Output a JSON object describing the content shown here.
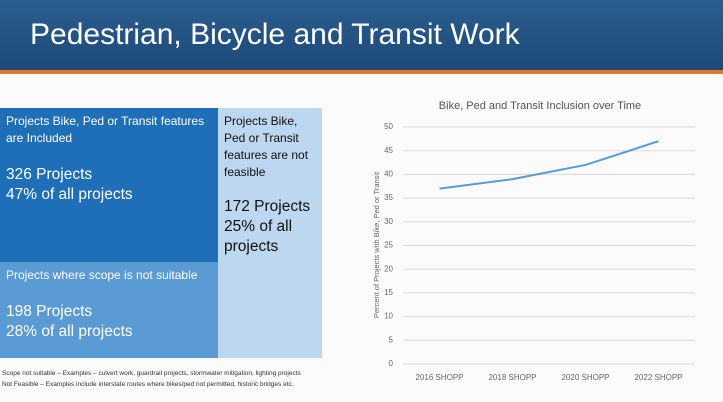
{
  "title": "Pedestrian, Bicycle and Transit Work",
  "panels": [
    {
      "label": "Projects Bike, Ped or Transit features are Included",
      "count": "326 Projects",
      "share": "47% of all projects"
    },
    {
      "label": "Projects Bike, Ped or Transit features are not feasible",
      "count": "172 Projects",
      "share": "25% of all projects"
    },
    {
      "label": "Projects where scope is not suitable",
      "count": "198 Projects",
      "share": "28% of all projects"
    }
  ],
  "footnotes": [
    "Scope not suitable – Examples – culvert work, guardrail projects, stormwater mitigation, lighting projects",
    "Not Feasible – Examples include interstate routes where bikes/ped not permitted, historic bridges etc."
  ],
  "chart_data": {
    "type": "line",
    "title": "Bike, Ped and Transit Inclusion over Time",
    "y_label": "Percent of Projects with Bike, Ped or Transit",
    "categories": [
      "2016 SHOPP",
      "2018 SHOPP",
      "2020 SHOPP",
      "2022 SHOPP"
    ],
    "values": [
      37,
      39,
      42,
      47
    ],
    "color": "#5b9bd5",
    "ylim": [
      0,
      50
    ],
    "yticks": [
      0,
      5,
      10,
      15,
      20,
      25,
      30,
      35,
      40,
      45,
      50
    ],
    "grid": true
  }
}
